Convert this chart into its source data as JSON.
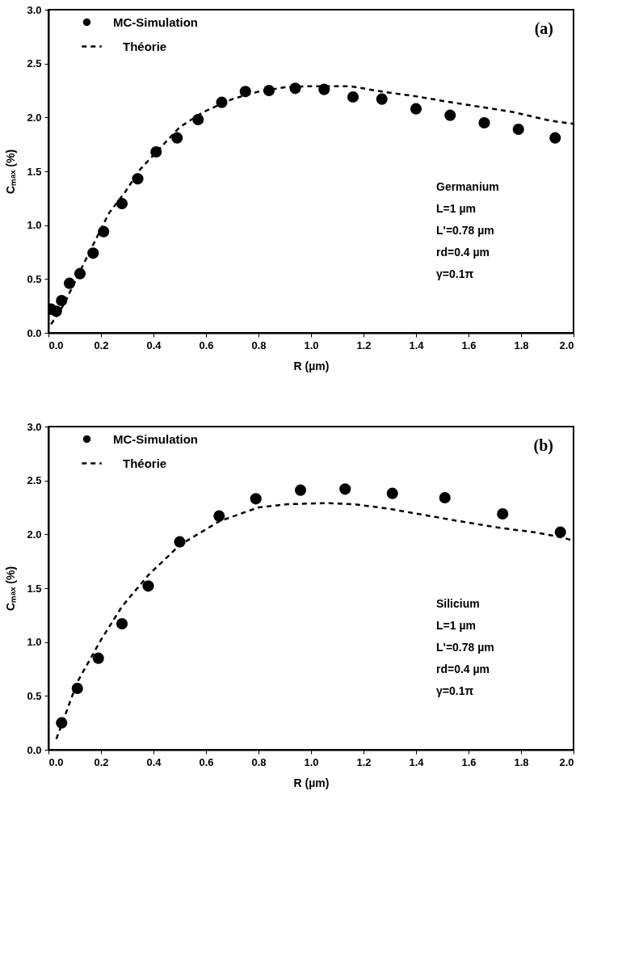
{
  "chart_data": [
    {
      "type": "scatter",
      "xlabel": "R (µm)",
      "ylabel": "Cₘₐₓ (%)",
      "legend": "top left",
      "grid": false,
      "xlim": [
        0,
        2
      ],
      "xticks": [
        {
          "value": 0,
          "label": "0.0"
        },
        0.2,
        0.4,
        0.6,
        0.8,
        {
          "value": 1,
          "label": "1.0"
        },
        1.2,
        1.4,
        1.6,
        1.8,
        {
          "value": 2,
          "label": "2.0"
        }
      ],
      "ylim": [
        0,
        3
      ],
      "yticks": [
        {
          "value": 0,
          "label": "0.0"
        },
        0.5,
        {
          "value": 1,
          "label": "1.0"
        },
        1.5,
        {
          "value": 2,
          "label": "2.0"
        },
        2.5,
        {
          "value": 3,
          "label": "3.0"
        }
      ],
      "annotations": [
        "(a)",
        "Germanium",
        "L=1 µm",
        "L'=0.78 µm",
        "rd=0.4 µm",
        "γ=0.1π"
      ],
      "series": [
        {
          "name": "MC-Simulation",
          "marker": "circle",
          "color": "#000000",
          "x": [
            0.01,
            0.03,
            0.05,
            0.08,
            0.12,
            0.17,
            0.21,
            0.28,
            0.34,
            0.41,
            0.49,
            0.57,
            0.66,
            0.75,
            0.84,
            0.94,
            1.05,
            1.16,
            1.27,
            1.4,
            1.53,
            1.66,
            1.79,
            1.93
          ],
          "values": [
            0.22,
            0.2,
            0.3,
            0.46,
            0.55,
            0.74,
            0.94,
            1.2,
            1.43,
            1.68,
            1.81,
            1.98,
            2.14,
            2.24,
            2.25,
            2.27,
            2.26,
            2.19,
            2.17,
            2.08,
            2.02,
            1.95,
            1.89,
            1.81
          ]
        },
        {
          "name": "Théorie",
          "type": "line",
          "line_style": "dashed",
          "color": "#000000",
          "x": [
            0.01,
            0.06,
            0.14,
            0.23,
            0.29,
            0.35,
            0.5,
            0.59,
            0.7,
            0.8,
            0.9,
            1.0,
            1.15,
            1.27,
            1.39,
            1.51,
            1.64,
            1.77,
            1.91,
            2.0
          ],
          "values": [
            0.08,
            0.27,
            0.67,
            1.11,
            1.3,
            1.52,
            1.91,
            2.05,
            2.17,
            2.24,
            2.28,
            2.29,
            2.29,
            2.24,
            2.2,
            2.15,
            2.1,
            2.05,
            1.97,
            1.94
          ]
        }
      ]
    },
    {
      "type": "scatter",
      "xlabel": "R (µm)",
      "ylabel": "Cₘₐₓ (%)",
      "legend": "top left",
      "grid": false,
      "xlim": [
        0,
        2
      ],
      "xticks": [
        {
          "value": 0,
          "label": "0.0"
        },
        0.2,
        0.4,
        0.6,
        0.8,
        {
          "value": 1,
          "label": "1.0"
        },
        1.2,
        1.4,
        1.6,
        1.8,
        {
          "value": 2,
          "label": "2.0"
        }
      ],
      "ylim": [
        0,
        3
      ],
      "yticks": [
        {
          "value": 0,
          "label": "0.0"
        },
        0.5,
        {
          "value": 1,
          "label": "1.0"
        },
        1.5,
        {
          "value": 2,
          "label": "2.0"
        },
        2.5,
        {
          "value": 3,
          "label": "3.0"
        }
      ],
      "annotations": [
        "(b)",
        "Silicium",
        "L=1 µm",
        "L'=0.78 µm",
        "rd=0.4 µm",
        "γ=0.1π"
      ],
      "series": [
        {
          "name": "MC-Simulation",
          "marker": "circle",
          "color": "#000000",
          "x": [
            0.05,
            0.11,
            0.19,
            0.28,
            0.38,
            0.5,
            0.65,
            0.79,
            0.96,
            1.13,
            1.31,
            1.51,
            1.73,
            1.95
          ],
          "values": [
            0.25,
            0.57,
            0.85,
            1.17,
            1.52,
            1.93,
            2.17,
            2.33,
            2.41,
            2.42,
            2.38,
            2.34,
            2.19,
            2.02
          ]
        },
        {
          "name": "Théorie",
          "type": "line",
          "line_style": "dashed",
          "color": "#000000",
          "x": [
            0.03,
            0.11,
            0.2,
            0.28,
            0.38,
            0.5,
            0.65,
            0.8,
            0.91,
            1.06,
            1.16,
            1.29,
            1.43,
            1.57,
            1.72,
            1.85,
            1.96,
            2.0
          ],
          "values": [
            0.1,
            0.63,
            1.02,
            1.33,
            1.62,
            1.9,
            2.12,
            2.25,
            2.28,
            2.29,
            2.28,
            2.24,
            2.18,
            2.12,
            2.06,
            2.02,
            1.97,
            1.94
          ]
        }
      ]
    }
  ]
}
